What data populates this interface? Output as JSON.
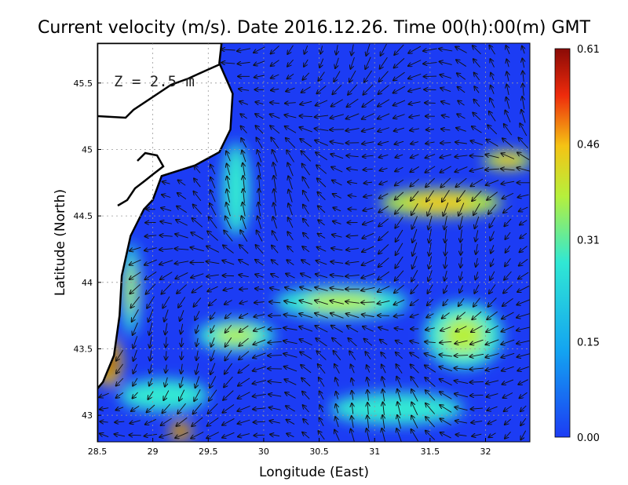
{
  "title": "Current velocity (m/s). Date 2016.12.26. Time 00(h):00(m) GMT",
  "depth_label": "Z = 2.5 m",
  "xlabel": "Longitude (East)",
  "ylabel": "Latitude (North)",
  "chart_data": {
    "type": "heatmap",
    "xlim": [
      28.5,
      32.4
    ],
    "ylim": [
      42.8,
      45.8
    ],
    "xticks": [
      "28.5",
      "29",
      "29.5",
      "30",
      "30.5",
      "31",
      "31.5",
      "32"
    ],
    "yticks": [
      "43",
      "43.5",
      "44",
      "44.5",
      "45",
      "45.5"
    ],
    "grid": true,
    "colorbar": {
      "min": 0.0,
      "max": 0.61,
      "ticks": [
        "0.00",
        "0.15",
        "0.31",
        "0.46",
        "0.61"
      ],
      "colors": [
        "#1c3cf4",
        "#13a3f1",
        "#30e8d4",
        "#b6f03c",
        "#f5c314",
        "#ee2b0c",
        "#8a0a06"
      ]
    },
    "coast": [
      [
        29.62,
        45.8
      ],
      [
        29.6,
        45.65
      ],
      [
        29.72,
        45.42
      ],
      [
        29.7,
        45.15
      ],
      [
        29.6,
        44.98
      ],
      [
        29.38,
        44.88
      ],
      [
        29.08,
        44.8
      ],
      [
        29.0,
        44.62
      ],
      [
        28.92,
        44.55
      ],
      [
        28.8,
        44.35
      ],
      [
        28.72,
        44.05
      ],
      [
        28.7,
        43.75
      ],
      [
        28.65,
        43.45
      ],
      [
        28.55,
        43.25
      ],
      [
        28.5,
        43.2
      ]
    ],
    "speed_features": [
      {
        "lon": 28.6,
        "lat": 43.4,
        "speed": 0.6,
        "rx": 0.12,
        "ry": 0.18
      },
      {
        "lon": 29.25,
        "lat": 42.88,
        "speed": 0.58,
        "rx": 0.1,
        "ry": 0.08
      },
      {
        "lon": 31.6,
        "lat": 44.6,
        "speed": 0.42,
        "rx": 0.55,
        "ry": 0.1
      },
      {
        "lon": 32.2,
        "lat": 44.92,
        "speed": 0.44,
        "rx": 0.22,
        "ry": 0.07
      },
      {
        "lon": 29.75,
        "lat": 43.6,
        "speed": 0.33,
        "rx": 0.35,
        "ry": 0.12
      },
      {
        "lon": 30.7,
        "lat": 43.85,
        "speed": 0.28,
        "rx": 0.6,
        "ry": 0.12
      },
      {
        "lon": 31.8,
        "lat": 43.6,
        "speed": 0.3,
        "rx": 0.35,
        "ry": 0.25
      },
      {
        "lon": 28.8,
        "lat": 43.95,
        "speed": 0.3,
        "rx": 0.08,
        "ry": 0.35
      },
      {
        "lon": 29.1,
        "lat": 43.15,
        "speed": 0.25,
        "rx": 0.4,
        "ry": 0.12
      },
      {
        "lon": 31.2,
        "lat": 43.05,
        "speed": 0.22,
        "rx": 0.6,
        "ry": 0.12
      },
      {
        "lon": 29.75,
        "lat": 44.7,
        "speed": 0.25,
        "rx": 0.12,
        "ry": 0.35
      }
    ]
  }
}
